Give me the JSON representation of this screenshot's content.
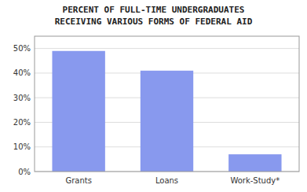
{
  "chart_data": {
    "type": "bar",
    "title": "PERCENT OF FULL-TIME UNDERGRADUATES",
    "subtitle": "RECEIVING VARIOUS FORMS OF FEDERAL AID",
    "categories": [
      "Grants",
      "Loans",
      "Work-Study*"
    ],
    "values": [
      49,
      41,
      7
    ],
    "color": "#8899EE",
    "ylim": [
      0,
      55
    ],
    "yticks": [
      {
        "value": 0,
        "label": "0%"
      },
      {
        "value": 10,
        "label": "10%"
      },
      {
        "value": 20,
        "label": "20%"
      },
      {
        "value": 30,
        "label": "30%"
      },
      {
        "value": 40,
        "label": "40%"
      },
      {
        "value": 50,
        "label": "50%"
      }
    ],
    "grid": true
  }
}
